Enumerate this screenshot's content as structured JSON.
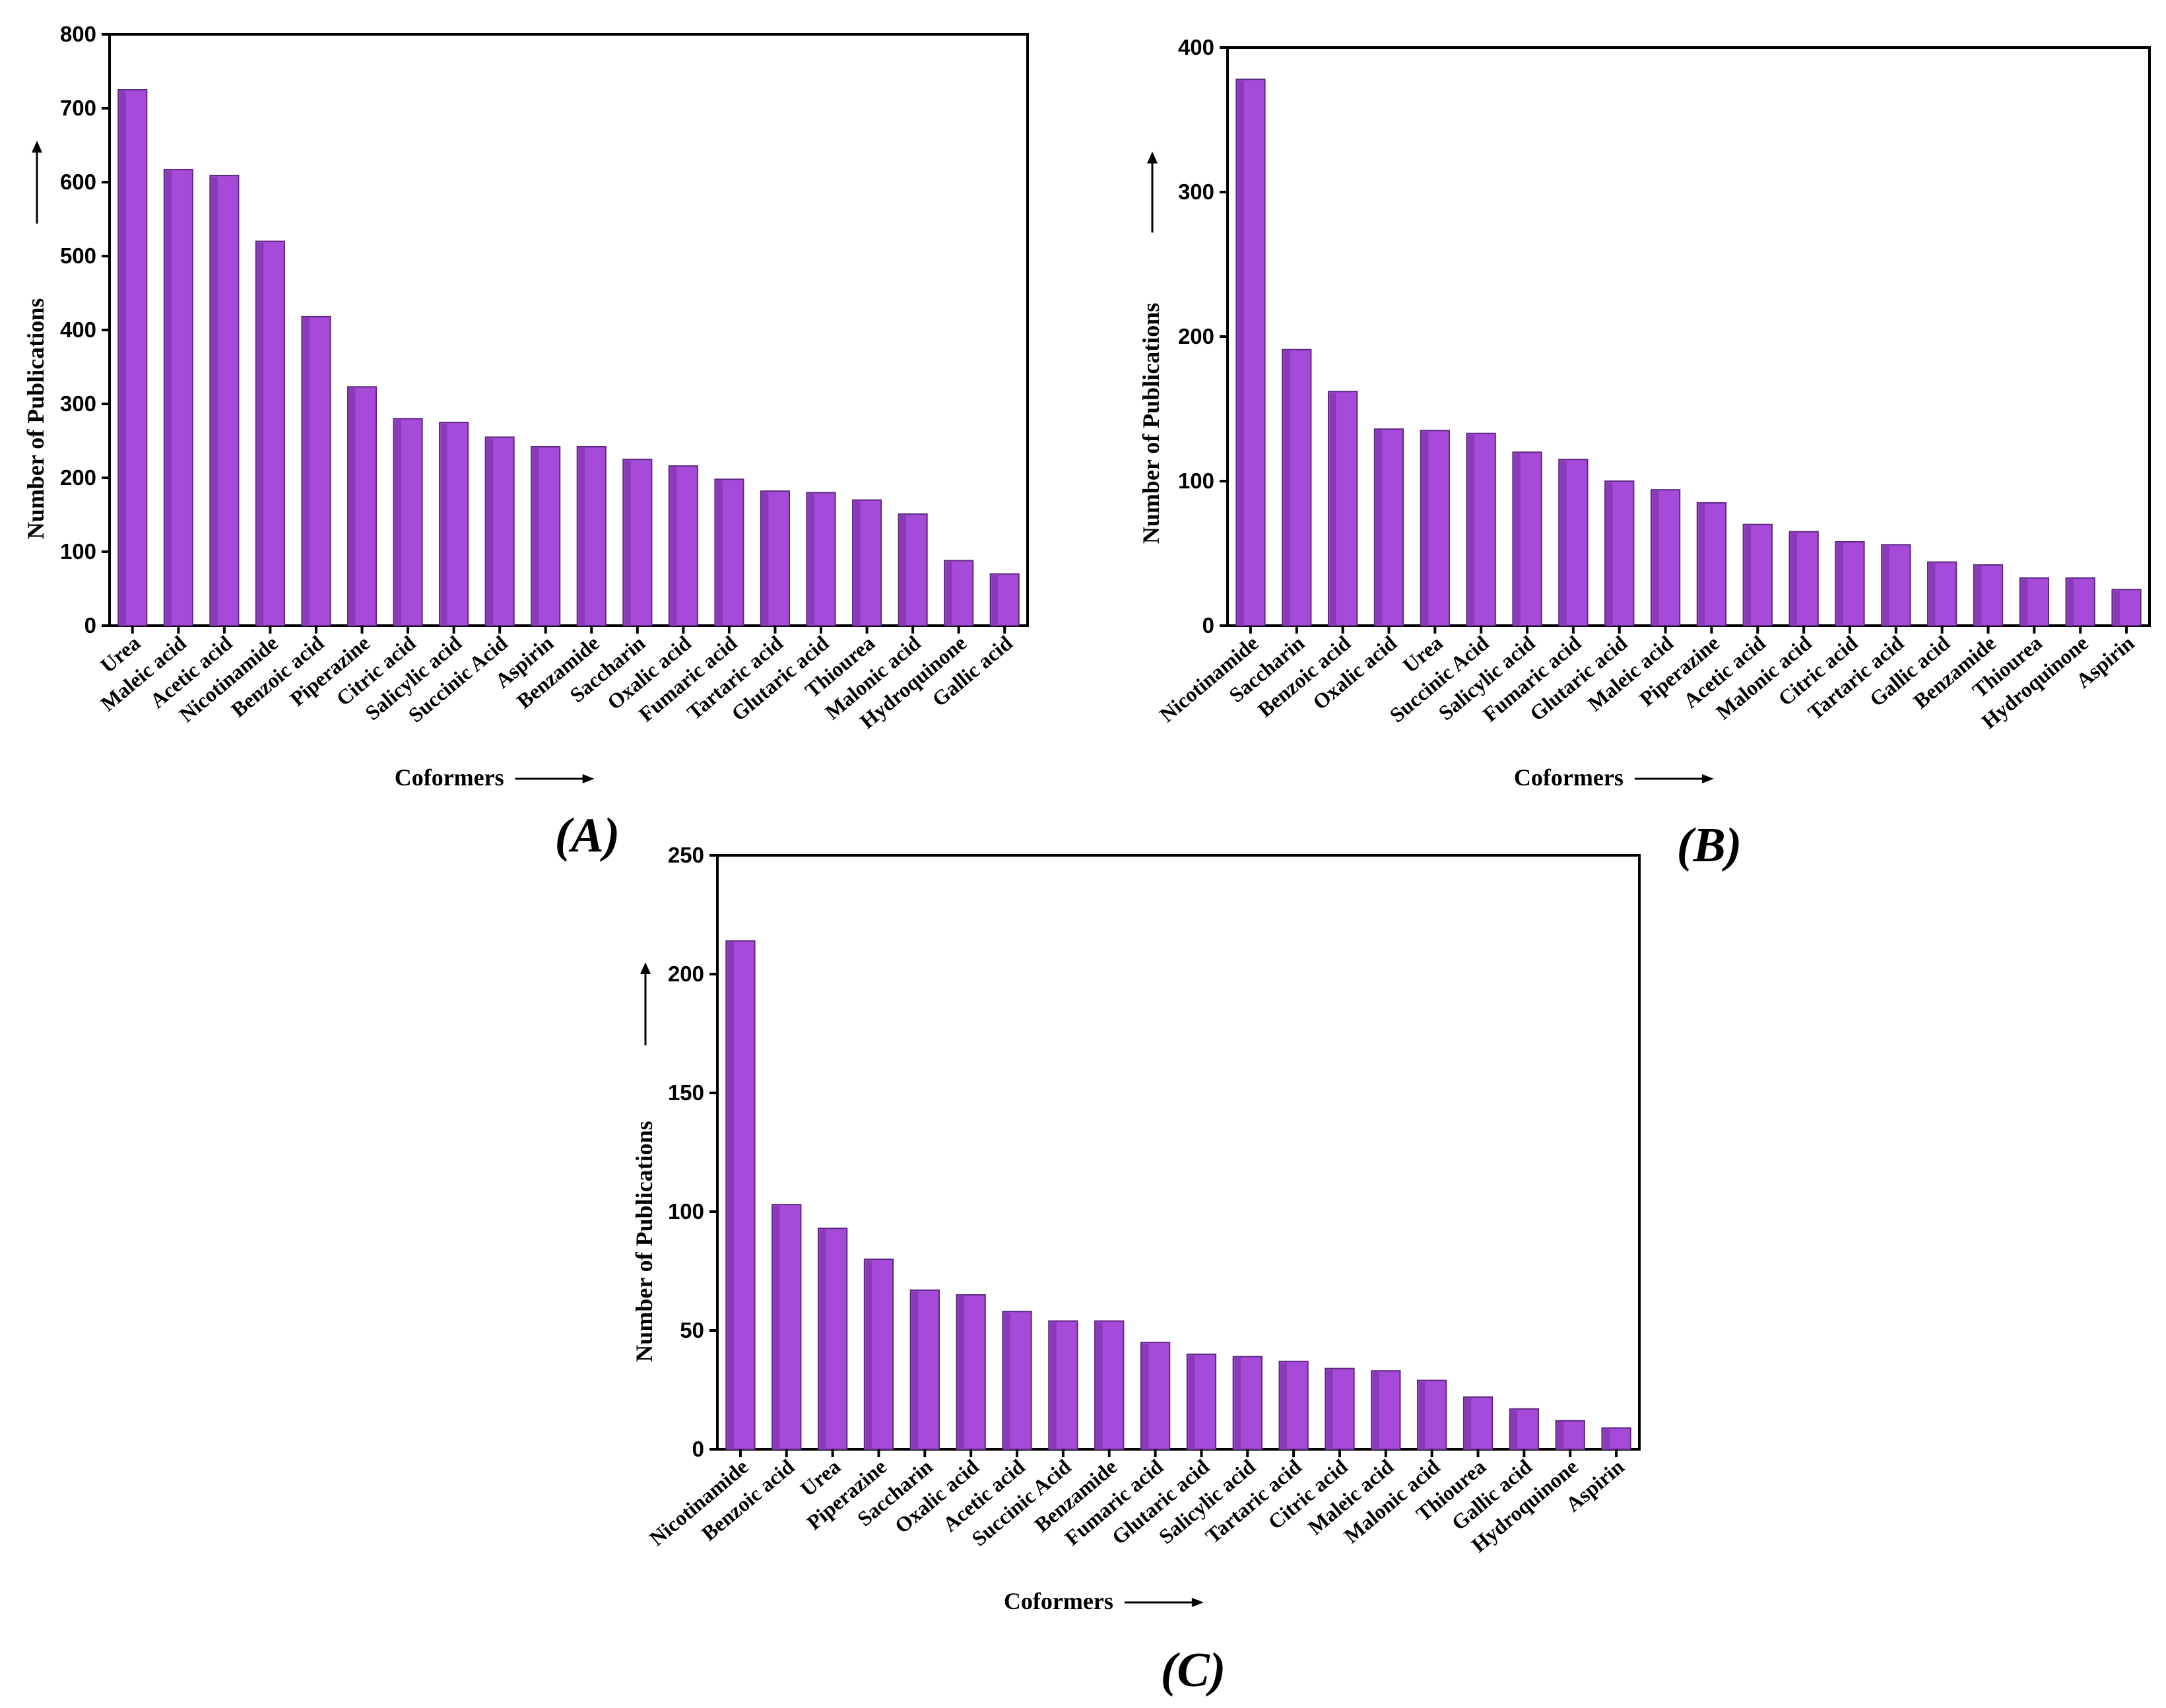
{
  "colors": {
    "bar": "#a64ad9",
    "bar_edge": "#5c2a7e",
    "axis": "#000000"
  },
  "chart_data": [
    {
      "id": "A",
      "type": "bar",
      "panel_label": "(A)",
      "xlabel": "Coformers",
      "ylabel": "Number of Publications",
      "ylim": [
        0,
        800
      ],
      "yticks": [
        0,
        100,
        200,
        300,
        400,
        500,
        600,
        700,
        800
      ],
      "categories": [
        "Urea",
        "Maleic acid",
        "Acetic acid",
        "Nicotinamide",
        "Benzoic acid",
        "Piperazine",
        "Citric acid",
        "Salicylic acid",
        "Succinic Acid",
        "Aspirin",
        "Benzamide",
        "Saccharin",
        "Oxalic acid",
        "Fumaric acid",
        "Tartaric acid",
        "Glutaric acid",
        "Thiourea",
        "Malonic acid",
        "Hydroquinone",
        "Gallic acid"
      ],
      "values": [
        725,
        617,
        609,
        520,
        418,
        323,
        280,
        275,
        255,
        242,
        242,
        225,
        216,
        198,
        182,
        180,
        170,
        151,
        88,
        70
      ]
    },
    {
      "id": "B",
      "type": "bar",
      "panel_label": "(B)",
      "xlabel": "Coformers",
      "ylabel": "Number of Publications",
      "ylim": [
        0,
        400
      ],
      "yticks": [
        0,
        100,
        200,
        300,
        400
      ],
      "categories": [
        "Nicotinamide",
        "Saccharin",
        "Benzoic acid",
        "Oxalic acid",
        "Urea",
        "Succinic Acid",
        "Salicylic acid",
        "Fumaric acid",
        "Glutaric acid",
        "Maleic acid",
        "Piperazine",
        "Acetic acid",
        "Malonic acid",
        "Citric acid",
        "Tartaric acid",
        "Gallic acid",
        "Benzamide",
        "Thiourea",
        "Hydroquinone",
        "Aspirin"
      ],
      "values": [
        378,
        191,
        162,
        136,
        135,
        133,
        120,
        115,
        100,
        94,
        85,
        70,
        65,
        58,
        56,
        44,
        42,
        33,
        33,
        25
      ]
    },
    {
      "id": "C",
      "type": "bar",
      "panel_label": "(C)",
      "xlabel": "Coformers",
      "ylabel": "Number of Publications",
      "ylim": [
        0,
        250
      ],
      "yticks": [
        0,
        50,
        100,
        150,
        200,
        250
      ],
      "categories": [
        "Nicotinamide",
        "Benzoic acid",
        "Urea",
        "Piperazine",
        "Saccharin",
        "Oxalic acid",
        "Acetic acid",
        "Succinic Acid",
        "Benzamide",
        "Fumaric acid",
        "Glutaric acid",
        "Salicylic acid",
        "Tartaric acid",
        "Citric acid",
        "Maleic acid",
        "Malonic acid",
        "Thiourea",
        "Gallic acid",
        "Hydroquinone",
        "Aspirin"
      ],
      "values": [
        214,
        103,
        93,
        80,
        67,
        65,
        58,
        54,
        54,
        45,
        40,
        39,
        37,
        34,
        33,
        29,
        22,
        17,
        12,
        9
      ]
    }
  ]
}
